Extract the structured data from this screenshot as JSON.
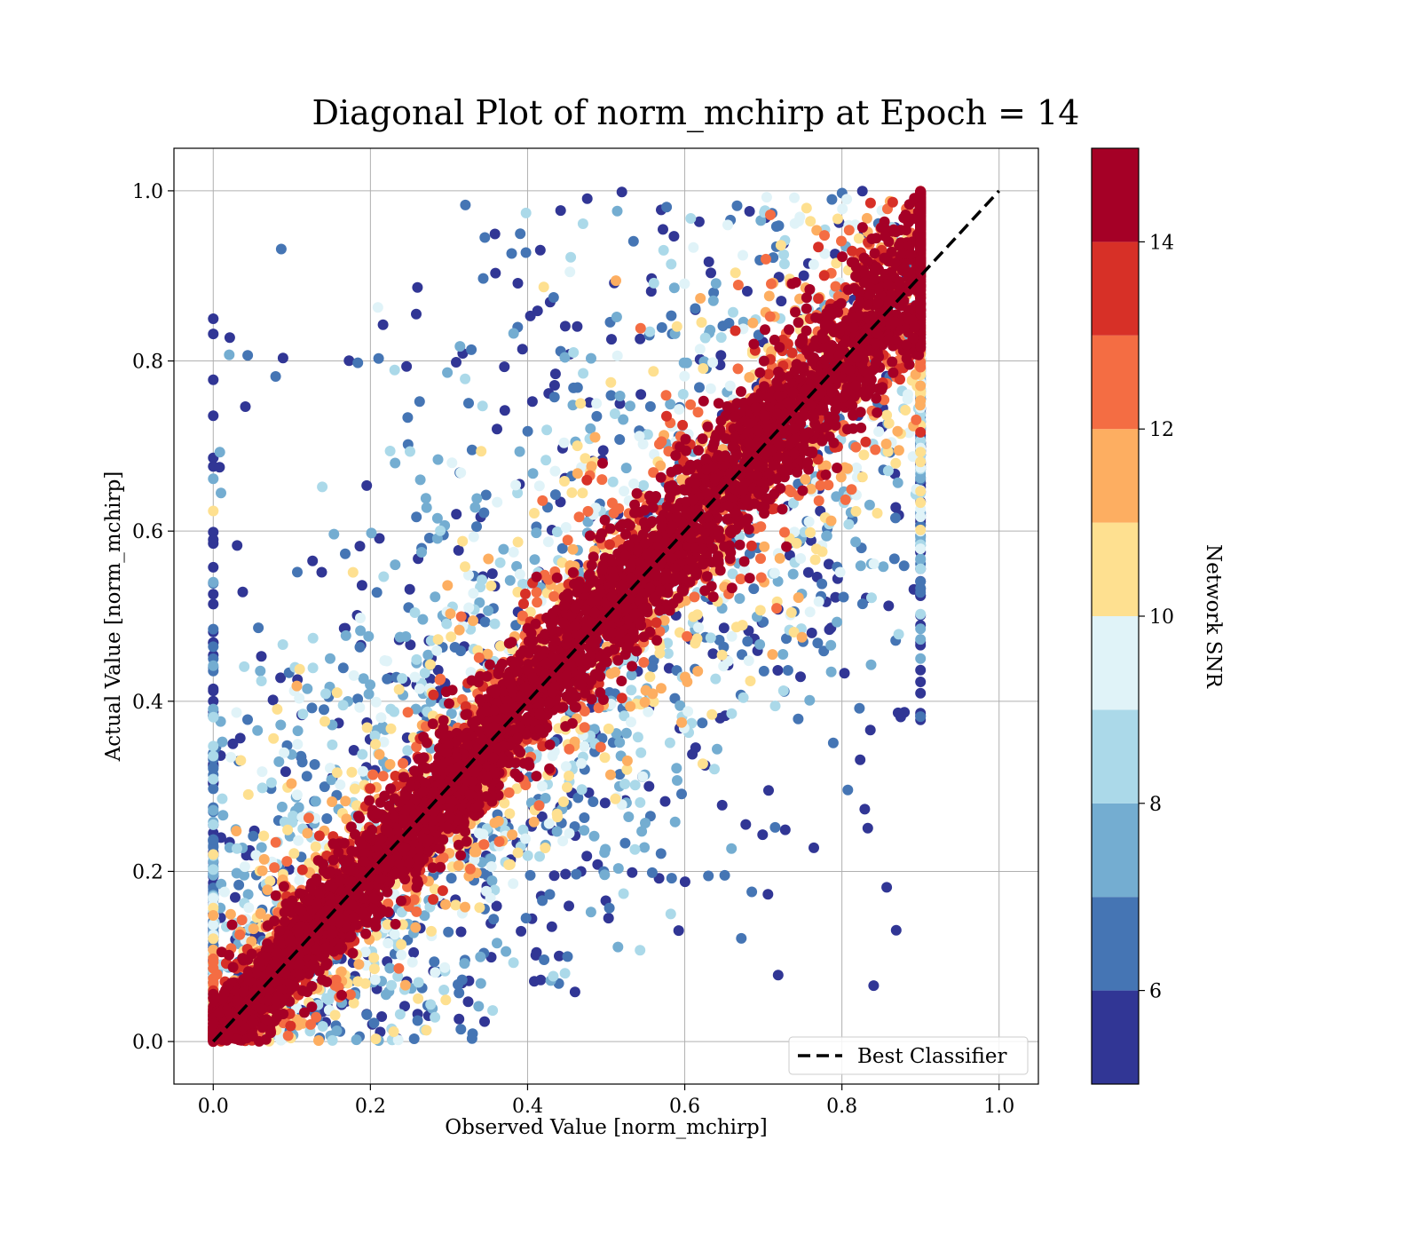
{
  "chart_data": {
    "type": "scatter",
    "title": "Diagonal Plot of norm_mchirp at Epoch = 14",
    "xlabel": "Observed Value [norm_mchirp]",
    "ylabel": "Actual Value [norm_mchirp]",
    "xlim": [
      -0.05,
      1.05
    ],
    "ylim": [
      -0.05,
      1.05
    ],
    "xticks": [
      0.0,
      0.2,
      0.4,
      0.6,
      0.8,
      1.0
    ],
    "xtick_labels": [
      "0.0",
      "0.2",
      "0.4",
      "0.6",
      "0.8",
      "1.0"
    ],
    "yticks": [
      0.0,
      0.2,
      0.4,
      0.6,
      0.8,
      1.0
    ],
    "ytick_labels": [
      "0.0",
      "0.2",
      "0.4",
      "0.6",
      "0.8",
      "1.0"
    ],
    "grid": true,
    "reference_line": {
      "name": "Best Classifier",
      "x": [
        0.0,
        1.0
      ],
      "y": [
        0.0,
        1.0
      ],
      "style": "dashed",
      "color": "#000000"
    },
    "legend": {
      "entries": [
        "Best Classifier"
      ],
      "placement": "lower-right"
    },
    "color_encoding": "Network SNR",
    "density_description": {
      "observed_range": [
        0.0,
        0.9
      ],
      "actual_range": [
        0.0,
        1.0
      ],
      "high_snr_spread": 0.04,
      "low_snr_spread": 0.35
    },
    "colorbar": {
      "label": "Network SNR",
      "min": 5,
      "max": 15,
      "boundaries": [
        5,
        6,
        7,
        8,
        9,
        10,
        11,
        12,
        13,
        14,
        15
      ],
      "ticks": [
        6,
        8,
        10,
        12,
        14
      ],
      "tick_labels": [
        "6",
        "8",
        "10",
        "12",
        "14"
      ],
      "colors": [
        "#313695",
        "#4575b4",
        "#74add1",
        "#abd9e9",
        "#e0f3f8",
        "#fee090",
        "#fdae61",
        "#f46d43",
        "#d73027",
        "#a50026"
      ]
    }
  }
}
